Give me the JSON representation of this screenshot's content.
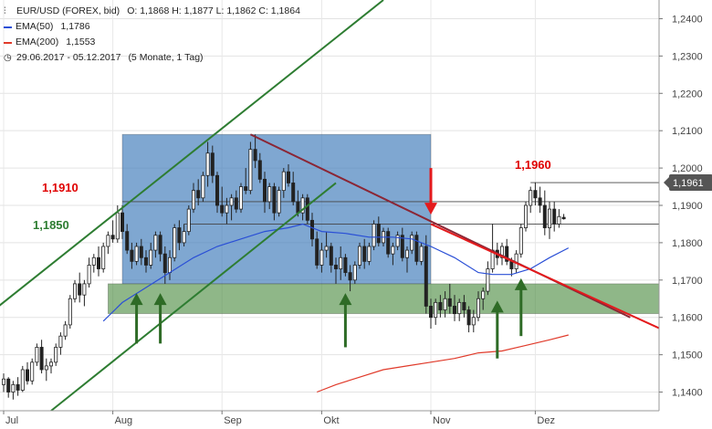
{
  "legend": {
    "instrument": "EUR/USD (FOREX, bid)",
    "ohlc": "O: 1,1868  H: 1,1877  L: 1,1862  C: 1,1864",
    "ema50_label": "EMA(50)",
    "ema50_value": "1,1786",
    "ema200_label": "EMA(200)",
    "ema200_value": "1,1553",
    "range": "29.06.2017 - 05.12.2017",
    "period": "(5 Monate, 1 Tag)"
  },
  "colors": {
    "ema50": "#2a4fd6",
    "ema200": "#e03a2a",
    "channel": "#2e7d32",
    "downtrend_dark": "#8b2635",
    "downtrend_red": "#e41a1c",
    "box_fill": "#3b78b8",
    "support_fill": "#4a8b3f",
    "candle": "#222222",
    "label_red": "#e00000",
    "label_green": "#2e7d32"
  },
  "chart_data": {
    "type": "candlestick",
    "y_axis": {
      "min": 1.135,
      "max": 1.245,
      "position": "right",
      "ticks": [
        1.14,
        1.15,
        1.16,
        1.17,
        1.18,
        1.19,
        1.2,
        1.21,
        1.22,
        1.23,
        1.24
      ],
      "tick_labels": [
        "1,1400",
        "1,1500",
        "1,1600",
        "1,1700",
        "1,1800",
        "1,1900",
        "1,2000",
        "1,2100",
        "1,2200",
        "1,2300",
        "1,2400"
      ]
    },
    "x_axis": {
      "labels": [
        {
          "label": "Jul",
          "index": 0
        },
        {
          "label": "Aug",
          "index": 23
        },
        {
          "label": "Sep",
          "index": 46
        },
        {
          "label": "Okt",
          "index": 67
        },
        {
          "label": "Nov",
          "index": 90
        },
        {
          "label": "Dez",
          "index": 112
        }
      ]
    },
    "candles": [
      [
        1.142,
        1.145,
        1.14,
        1.1435
      ],
      [
        1.1435,
        1.144,
        1.1385,
        1.14
      ],
      [
        1.14,
        1.143,
        1.138,
        1.142
      ],
      [
        1.142,
        1.144,
        1.139,
        1.1405
      ],
      [
        1.1405,
        1.147,
        1.14,
        1.146
      ],
      [
        1.146,
        1.148,
        1.142,
        1.143
      ],
      [
        1.143,
        1.149,
        1.142,
        1.148
      ],
      [
        1.148,
        1.153,
        1.147,
        1.152
      ],
      [
        1.152,
        1.154,
        1.145,
        1.146
      ],
      [
        1.146,
        1.149,
        1.143,
        1.147
      ],
      [
        1.147,
        1.149,
        1.145,
        1.148
      ],
      [
        1.148,
        1.153,
        1.147,
        1.152
      ],
      [
        1.152,
        1.156,
        1.15,
        1.155
      ],
      [
        1.155,
        1.159,
        1.154,
        1.158
      ],
      [
        1.158,
        1.166,
        1.157,
        1.165
      ],
      [
        1.165,
        1.17,
        1.164,
        1.169
      ],
      [
        1.169,
        1.172,
        1.164,
        1.166
      ],
      [
        1.166,
        1.17,
        1.163,
        1.169
      ],
      [
        1.169,
        1.176,
        1.168,
        1.174
      ],
      [
        1.174,
        1.177,
        1.172,
        1.176
      ],
      [
        1.176,
        1.179,
        1.171,
        1.173
      ],
      [
        1.173,
        1.18,
        1.172,
        1.179
      ],
      [
        1.179,
        1.183,
        1.177,
        1.182
      ],
      [
        1.182,
        1.186,
        1.18,
        1.181
      ],
      [
        1.181,
        1.19,
        1.18,
        1.188
      ],
      [
        1.188,
        1.19,
        1.181,
        1.183
      ],
      [
        1.183,
        1.185,
        1.177,
        1.178
      ],
      [
        1.178,
        1.18,
        1.173,
        1.175
      ],
      [
        1.175,
        1.18,
        1.174,
        1.179
      ],
      [
        1.179,
        1.181,
        1.174,
        1.176
      ],
      [
        1.176,
        1.178,
        1.172,
        1.174
      ],
      [
        1.174,
        1.18,
        1.173,
        1.178
      ],
      [
        1.178,
        1.183,
        1.176,
        1.182
      ],
      [
        1.182,
        1.183,
        1.175,
        1.177
      ],
      [
        1.177,
        1.179,
        1.169,
        1.172
      ],
      [
        1.172,
        1.178,
        1.17,
        1.176
      ],
      [
        1.176,
        1.185,
        1.175,
        1.184
      ],
      [
        1.184,
        1.186,
        1.178,
        1.18
      ],
      [
        1.18,
        1.185,
        1.179,
        1.183
      ],
      [
        1.183,
        1.19,
        1.182,
        1.189
      ],
      [
        1.189,
        1.196,
        1.188,
        1.194
      ],
      [
        1.194,
        1.197,
        1.19,
        1.192
      ],
      [
        1.192,
        1.199,
        1.191,
        1.198
      ],
      [
        1.198,
        1.207,
        1.195,
        1.204
      ],
      [
        1.204,
        1.206,
        1.196,
        1.198
      ],
      [
        1.198,
        1.199,
        1.188,
        1.19
      ],
      [
        1.19,
        1.195,
        1.187,
        1.188
      ],
      [
        1.188,
        1.192,
        1.185,
        1.19
      ],
      [
        1.19,
        1.193,
        1.186,
        1.192
      ],
      [
        1.192,
        1.194,
        1.188,
        1.189
      ],
      [
        1.189,
        1.196,
        1.188,
        1.195
      ],
      [
        1.195,
        1.2,
        1.193,
        1.194
      ],
      [
        1.194,
        1.207,
        1.193,
        1.205
      ],
      [
        1.205,
        1.209,
        1.2,
        1.202
      ],
      [
        1.202,
        1.204,
        1.196,
        1.197
      ],
      [
        1.197,
        1.199,
        1.188,
        1.191
      ],
      [
        1.191,
        1.196,
        1.189,
        1.195
      ],
      [
        1.195,
        1.196,
        1.186,
        1.188
      ],
      [
        1.188,
        1.195,
        1.187,
        1.194
      ],
      [
        1.194,
        1.2,
        1.192,
        1.199
      ],
      [
        1.199,
        1.201,
        1.195,
        1.196
      ],
      [
        1.196,
        1.199,
        1.19,
        1.191
      ],
      [
        1.191,
        1.194,
        1.187,
        1.188
      ],
      [
        1.188,
        1.193,
        1.186,
        1.192
      ],
      [
        1.192,
        1.193,
        1.185,
        1.186
      ],
      [
        1.186,
        1.188,
        1.179,
        1.181
      ],
      [
        1.181,
        1.183,
        1.173,
        1.174
      ],
      [
        1.174,
        1.18,
        1.172,
        1.178
      ],
      [
        1.178,
        1.183,
        1.176,
        1.179
      ],
      [
        1.179,
        1.18,
        1.172,
        1.174
      ],
      [
        1.174,
        1.176,
        1.169,
        1.173
      ],
      [
        1.173,
        1.179,
        1.17,
        1.176
      ],
      [
        1.176,
        1.177,
        1.171,
        1.172
      ],
      [
        1.172,
        1.174,
        1.167,
        1.17
      ],
      [
        1.17,
        1.175,
        1.169,
        1.174
      ],
      [
        1.174,
        1.18,
        1.173,
        1.179
      ],
      [
        1.179,
        1.181,
        1.173,
        1.175
      ],
      [
        1.175,
        1.18,
        1.174,
        1.179
      ],
      [
        1.179,
        1.186,
        1.178,
        1.185
      ],
      [
        1.185,
        1.187,
        1.179,
        1.18
      ],
      [
        1.18,
        1.184,
        1.179,
        1.183
      ],
      [
        1.183,
        1.184,
        1.176,
        1.177
      ],
      [
        1.177,
        1.18,
        1.174,
        1.179
      ],
      [
        1.179,
        1.183,
        1.178,
        1.182
      ],
      [
        1.182,
        1.184,
        1.175,
        1.176
      ],
      [
        1.176,
        1.179,
        1.172,
        1.178
      ],
      [
        1.178,
        1.183,
        1.177,
        1.182
      ],
      [
        1.182,
        1.183,
        1.174,
        1.175
      ],
      [
        1.175,
        1.18,
        1.174,
        1.179
      ],
      [
        1.179,
        1.182,
        1.161,
        1.163
      ],
      [
        1.163,
        1.165,
        1.157,
        1.16
      ],
      [
        1.16,
        1.165,
        1.158,
        1.164
      ],
      [
        1.164,
        1.166,
        1.16,
        1.162
      ],
      [
        1.162,
        1.167,
        1.16,
        1.165
      ],
      [
        1.165,
        1.169,
        1.161,
        1.163
      ],
      [
        1.163,
        1.166,
        1.159,
        1.161
      ],
      [
        1.161,
        1.165,
        1.159,
        1.164
      ],
      [
        1.164,
        1.166,
        1.16,
        1.162
      ],
      [
        1.162,
        1.163,
        1.156,
        1.158
      ],
      [
        1.158,
        1.162,
        1.156,
        1.16
      ],
      [
        1.16,
        1.167,
        1.159,
        1.165
      ],
      [
        1.165,
        1.168,
        1.162,
        1.167
      ],
      [
        1.167,
        1.175,
        1.166,
        1.173
      ],
      [
        1.173,
        1.185,
        1.172,
        1.178
      ],
      [
        1.178,
        1.18,
        1.174,
        1.176
      ],
      [
        1.176,
        1.18,
        1.174,
        1.179
      ],
      [
        1.179,
        1.181,
        1.174,
        1.175
      ],
      [
        1.175,
        1.176,
        1.171,
        1.173
      ],
      [
        1.173,
        1.178,
        1.172,
        1.177
      ],
      [
        1.177,
        1.185,
        1.176,
        1.184
      ],
      [
        1.184,
        1.191,
        1.183,
        1.19
      ],
      [
        1.19,
        1.195,
        1.188,
        1.194
      ],
      [
        1.194,
        1.1961,
        1.19,
        1.192
      ],
      [
        1.192,
        1.195,
        1.188,
        1.19
      ],
      [
        1.19,
        1.194,
        1.182,
        1.184
      ],
      [
        1.184,
        1.191,
        1.181,
        1.189
      ],
      [
        1.189,
        1.191,
        1.183,
        1.185
      ],
      [
        1.185,
        1.189,
        1.184,
        1.187
      ],
      [
        1.1868,
        1.1877,
        1.1862,
        1.1864
      ]
    ],
    "series": [
      {
        "name": "EMA(50)",
        "type": "line",
        "points": [
          [
            21,
            1.159
          ],
          [
            25,
            1.164
          ],
          [
            30,
            1.168
          ],
          [
            35,
            1.172
          ],
          [
            40,
            1.176
          ],
          [
            45,
            1.179
          ],
          [
            50,
            1.181
          ],
          [
            55,
            1.183
          ],
          [
            60,
            1.184
          ],
          [
            63,
            1.185
          ],
          [
            67,
            1.183
          ],
          [
            72,
            1.1825
          ],
          [
            77,
            1.1815
          ],
          [
            82,
            1.1815
          ],
          [
            86,
            1.181
          ],
          [
            90,
            1.179
          ],
          [
            95,
            1.176
          ],
          [
            100,
            1.172
          ],
          [
            103,
            1.1715
          ],
          [
            107,
            1.1715
          ],
          [
            111,
            1.173
          ],
          [
            115,
            1.176
          ],
          [
            119,
            1.1786
          ]
        ]
      },
      {
        "name": "EMA(200)",
        "type": "line",
        "points": [
          [
            66,
            1.14
          ],
          [
            70,
            1.142
          ],
          [
            75,
            1.144
          ],
          [
            80,
            1.146
          ],
          [
            85,
            1.147
          ],
          [
            90,
            1.148
          ],
          [
            95,
            1.149
          ],
          [
            100,
            1.1505
          ],
          [
            105,
            1.151
          ],
          [
            110,
            1.1525
          ],
          [
            115,
            1.154
          ],
          [
            119,
            1.1553
          ]
        ]
      }
    ],
    "last_price_tag": "1,1961",
    "annotations": [
      {
        "text": "1,1910",
        "color": "red"
      },
      {
        "text": "1,1850",
        "color": "green"
      },
      {
        "text": "1,1960",
        "color": "red"
      }
    ],
    "zones": [
      {
        "type": "range_box",
        "x0": 25,
        "x1": 90,
        "y0": 1.169,
        "y1": 1.209
      },
      {
        "type": "support_band",
        "x0": 22,
        "x1": 140,
        "y0": 1.161,
        "y1": 1.169
      }
    ],
    "horizontal_lines": [
      {
        "y": 1.191,
        "x0": 25,
        "x1": 140
      },
      {
        "y": 1.185,
        "x0": 38,
        "x1": 140
      },
      {
        "y": 1.1961,
        "x0": 111,
        "x1": 140
      }
    ],
    "trend_lines": [
      {
        "name": "channel_upper",
        "points": [
          [
            -5,
            1.159
          ],
          [
            80,
            1.245
          ]
        ]
      },
      {
        "name": "channel_lower",
        "points": [
          [
            10,
            1.135
          ],
          [
            70,
            1.196
          ]
        ]
      },
      {
        "name": "downtrend_dark",
        "points": [
          [
            52,
            1.209
          ],
          [
            132,
            1.16
          ]
        ]
      },
      {
        "name": "downtrend_red",
        "points": [
          [
            90,
            1.185
          ],
          [
            140,
            1.156
          ]
        ]
      }
    ],
    "arrows": [
      {
        "direction": "down",
        "color": "red",
        "x": 90,
        "from": 1.2,
        "to": 1.188
      },
      {
        "direction": "up",
        "color": "green",
        "x": 28,
        "from": 1.153,
        "to": 1.166
      },
      {
        "direction": "up",
        "color": "green",
        "x": 33,
        "from": 1.153,
        "to": 1.166
      },
      {
        "direction": "up",
        "color": "green",
        "x": 72,
        "from": 1.152,
        "to": 1.166
      },
      {
        "direction": "up",
        "color": "green",
        "x": 104,
        "from": 1.149,
        "to": 1.164
      },
      {
        "direction": "up",
        "color": "green",
        "x": 109,
        "from": 1.155,
        "to": 1.17
      }
    ]
  }
}
